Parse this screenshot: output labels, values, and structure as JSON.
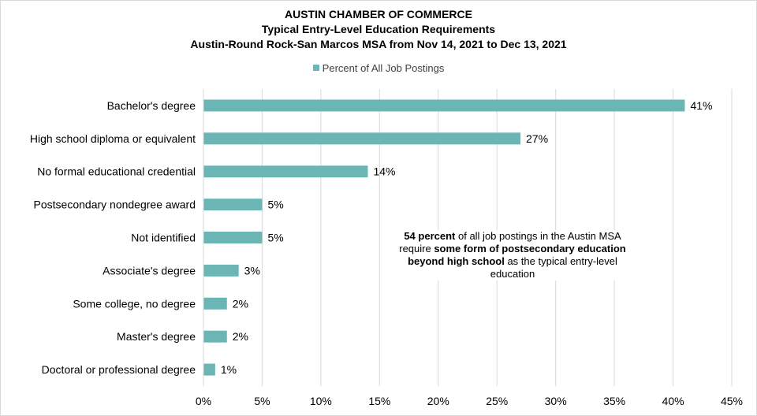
{
  "titles": {
    "line1": "AUSTIN CHAMBER OF COMMERCE",
    "line2": "Typical Entry-Level Education Requirements",
    "line3": "Austin-Round Rock-San Marcos MSA from Nov 14, 2021 to Dec 13, 2021"
  },
  "colors": {
    "bar": "#6bb6b5",
    "grid": "#d9d9d9",
    "text": "#000000"
  },
  "annotation": {
    "bold1": "54 percent",
    "text1": " of all job postings in the Austin MSA require ",
    "bold2": "some form of postsecondary education beyond high school",
    "text2": " as the typical entry-level education"
  },
  "chart_data": {
    "type": "bar",
    "orientation": "horizontal",
    "categories": [
      "Bachelor's degree",
      "High school diploma or equivalent",
      "No formal educational credential",
      "Postsecondary nondegree award",
      "Not identified",
      "Associate's degree",
      "Some college, no degree",
      "Master's degree",
      "Doctoral or professional degree"
    ],
    "series": [
      {
        "name": "Percent of All Job Postings",
        "values": [
          41,
          27,
          14,
          5,
          5,
          3,
          2,
          2,
          1
        ]
      }
    ],
    "data_labels": [
      "41%",
      "27%",
      "14%",
      "5%",
      "5%",
      "3%",
      "2%",
      "2%",
      "1%"
    ],
    "x_ticks": [
      "0%",
      "5%",
      "10%",
      "15%",
      "20%",
      "25%",
      "30%",
      "35%",
      "40%",
      "45%"
    ],
    "xlim": [
      0,
      45
    ],
    "grid": true,
    "legend_position": "top"
  }
}
